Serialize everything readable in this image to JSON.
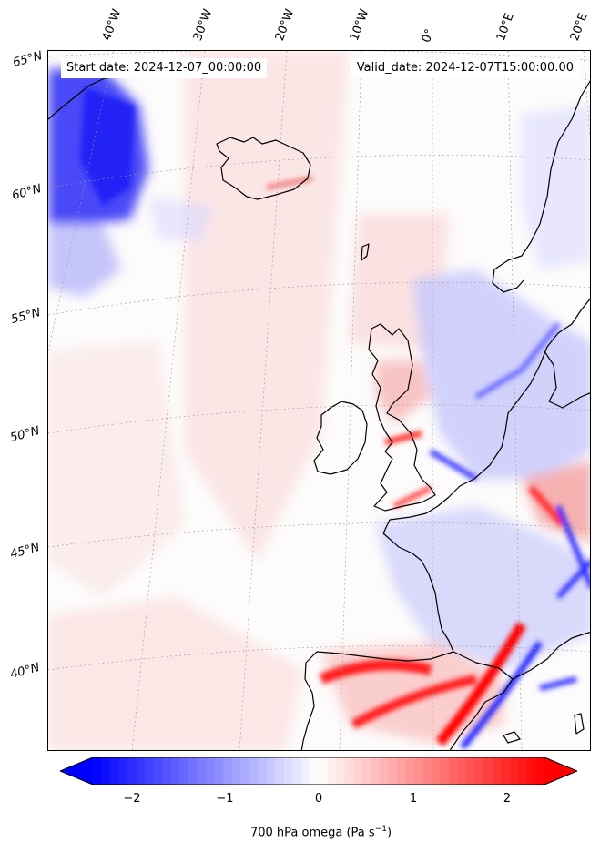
{
  "map": {
    "start_date": "Start date: 2024-12-07_00:00:00",
    "valid_date": "Valid_date: 2024-12-07T15:00:00.00",
    "longitude_labels": [
      "40°W",
      "30°W",
      "20°W",
      "10°W",
      "0°",
      "10°E",
      "20°E"
    ],
    "latitude_labels": [
      "65°N",
      "60°N",
      "55°N",
      "50°N",
      "45°N",
      "40°N"
    ],
    "field_variable": "700 hPa omega",
    "field_units": "Pa s",
    "field_units_exponent": "−1"
  },
  "colorbar": {
    "ticks": [
      "−2",
      "−1",
      "0",
      "1",
      "2"
    ],
    "tick_values": [
      -2,
      -1,
      0,
      1,
      2
    ],
    "range": [
      -2.6,
      2.6
    ],
    "colors": {
      "negative": "#0000ff",
      "zero": "#ffffff",
      "positive": "#ff0000"
    },
    "extend": "both"
  },
  "colors": {
    "coastline": "#000000",
    "gridlines": "#9a9a9a"
  }
}
